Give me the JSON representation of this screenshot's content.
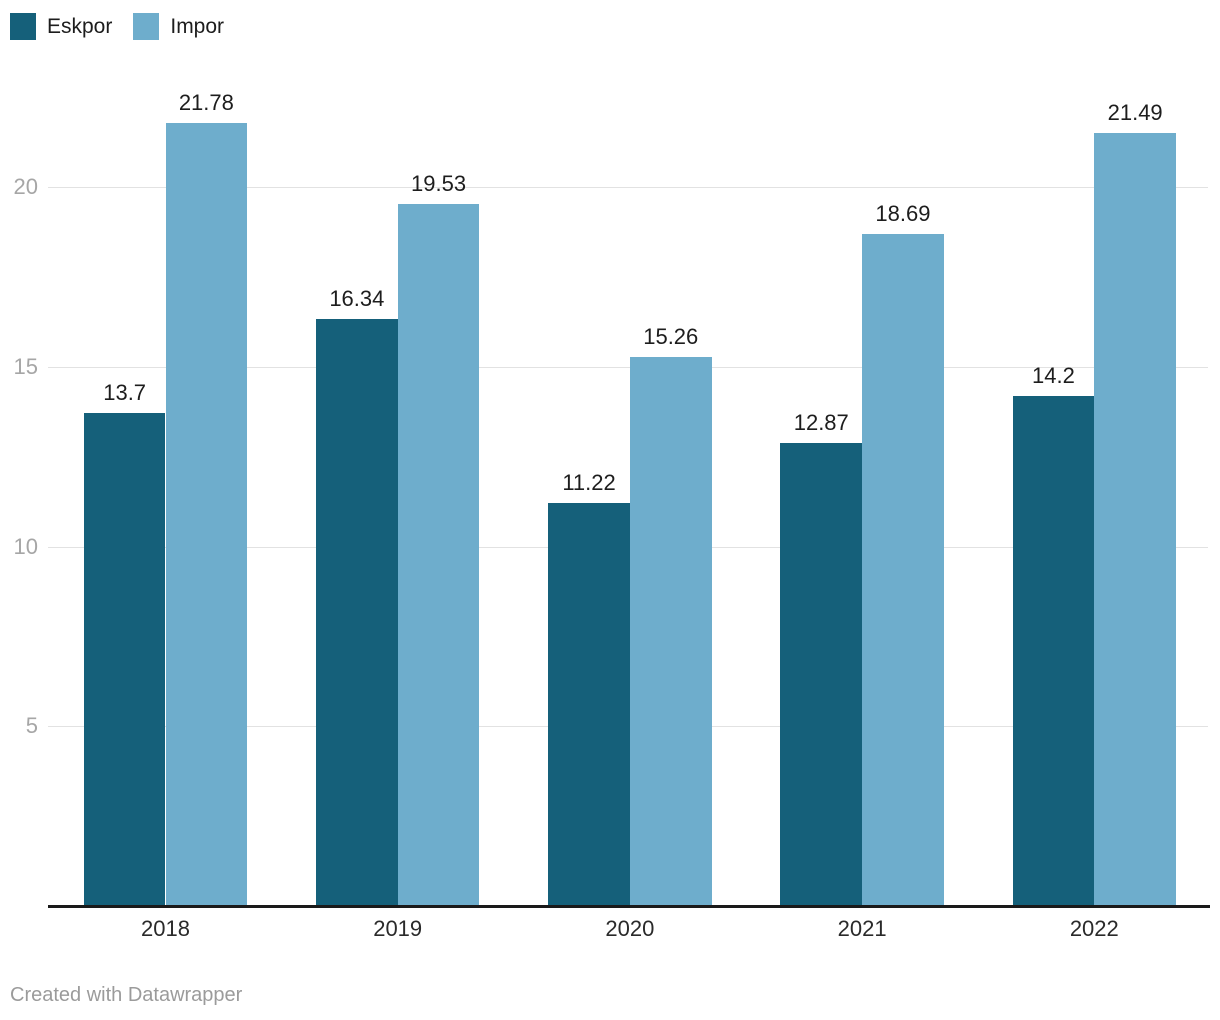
{
  "footer": {
    "attribution": "Created with Datawrapper"
  },
  "colors": {
    "eskpor": "#15607a",
    "impor": "#6eadcc",
    "gridline": "#e2e2e2",
    "axis_line": "#1a1a1a",
    "tick_text": "#a6a6a6",
    "label_text": "#1d1d1d"
  },
  "chart_data": {
    "type": "bar",
    "title": "",
    "xlabel": "",
    "ylabel": "",
    "categories": [
      "2018",
      "2019",
      "2020",
      "2021",
      "2022"
    ],
    "series": [
      {
        "name": "Eskpor",
        "color": "#15607a",
        "values": [
          13.7,
          16.34,
          11.22,
          12.87,
          14.2
        ]
      },
      {
        "name": "Impor",
        "color": "#6eadcc",
        "values": [
          21.78,
          19.53,
          15.26,
          18.69,
          21.49
        ]
      }
    ],
    "value_labels_shown": true,
    "yticks": [
      5,
      10,
      15,
      20
    ],
    "ylim": [
      0,
      23.7
    ],
    "grid": true,
    "legend_position": "top-left",
    "attribution": "Created with Datawrapper"
  }
}
